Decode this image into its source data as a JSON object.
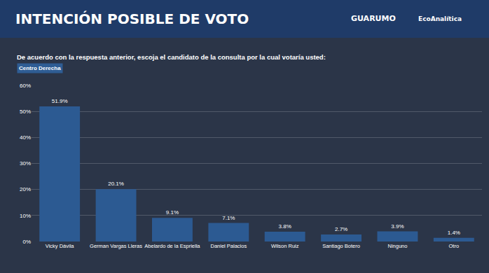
{
  "chart_data": {
    "type": "bar",
    "title": "INTENCIÓN POSIBLE DE VOTO",
    "subtitle": "De acuerdo con la respuesta anterior, escoja el candidato de la consulta por la cual votaría usted:",
    "annotations": [
      "GUARUMO",
      "EcoAnalítica",
      "Centro Derecha"
    ],
    "categories": [
      "Vicky Dávila",
      "German Vargas Lleras",
      "Abelardo de la Espriella",
      "Daniel Palacios",
      "Wilson Ruiz",
      "Santiago Botero",
      "Ninguno",
      "Otro"
    ],
    "values": [
      51.9,
      20.1,
      9.1,
      7.1,
      3.8,
      2.7,
      3.9,
      1.4
    ],
    "value_labels": [
      "51.9%",
      "20.1%",
      "9.1%",
      "7.1%",
      "3.8%",
      "2.7%",
      "3.9%",
      "1.4%"
    ],
    "color": "#2c5a92",
    "ylim": [
      0,
      60
    ],
    "yticks": [
      {
        "value": 0,
        "label": "0%"
      },
      {
        "value": 10,
        "label": "10%"
      },
      {
        "value": 20,
        "label": "20%"
      },
      {
        "value": 30,
        "label": "30%"
      },
      {
        "value": 40,
        "label": "40%"
      },
      {
        "value": 50,
        "label": "50%"
      },
      {
        "value": 60,
        "label": "60%"
      }
    ],
    "grid": true,
    "data_labels": true
  }
}
